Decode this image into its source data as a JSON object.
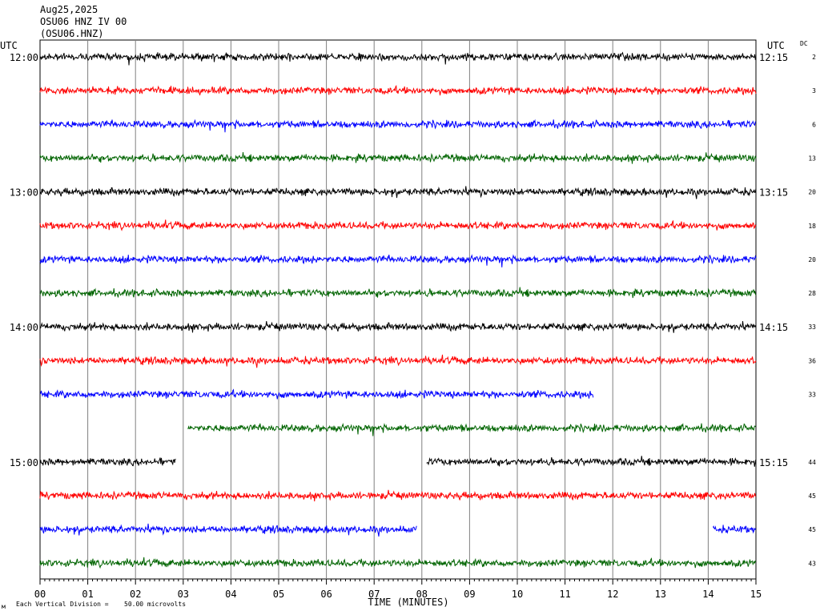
{
  "header": {
    "date": "Aug25,2025",
    "station": "OSU06 HNZ IV 00",
    "channel": "(OSU06.HNZ)",
    "utc_left": "UTC",
    "utc_right": "UTC",
    "dc_label": "DC"
  },
  "footer": {
    "scale_mark": "м",
    "scale_note": "Each Vertical Division =",
    "scale_value": "50.00 microvolts"
  },
  "chart_data": {
    "type": "line",
    "title": "OSU06 HNZ IV 00",
    "xlabel": "TIME (MINUTES)",
    "ylabel": "",
    "xlim": [
      0,
      15
    ],
    "x_ticks": [
      "00",
      "01",
      "02",
      "03",
      "04",
      "05",
      "06",
      "07",
      "08",
      "09",
      "10",
      "11",
      "12",
      "13",
      "14",
      "15"
    ],
    "grid": "vertical",
    "colors": [
      "#000000",
      "#ff0000",
      "#0000ff",
      "#006400"
    ],
    "rows": [
      {
        "left_label": "12:00",
        "right_label": "12:15",
        "dc": "2",
        "color": "#000000",
        "segments": [
          [
            0,
            15
          ]
        ]
      },
      {
        "left_label": "",
        "right_label": "",
        "dc": "3",
        "color": "#ff0000",
        "segments": [
          [
            0,
            15
          ]
        ]
      },
      {
        "left_label": "",
        "right_label": "",
        "dc": "6",
        "color": "#0000ff",
        "segments": [
          [
            0,
            15
          ]
        ]
      },
      {
        "left_label": "",
        "right_label": "",
        "dc": "13",
        "color": "#006400",
        "segments": [
          [
            0,
            15
          ]
        ]
      },
      {
        "left_label": "13:00",
        "right_label": "13:15",
        "dc": "20",
        "color": "#000000",
        "segments": [
          [
            0,
            15
          ]
        ]
      },
      {
        "left_label": "",
        "right_label": "",
        "dc": "18",
        "color": "#ff0000",
        "segments": [
          [
            0,
            15
          ]
        ]
      },
      {
        "left_label": "",
        "right_label": "",
        "dc": "20",
        "color": "#0000ff",
        "segments": [
          [
            0,
            15
          ]
        ]
      },
      {
        "left_label": "",
        "right_label": "",
        "dc": "28",
        "color": "#006400",
        "segments": [
          [
            0,
            15
          ]
        ]
      },
      {
        "left_label": "14:00",
        "right_label": "14:15",
        "dc": "33",
        "color": "#000000",
        "segments": [
          [
            0,
            15
          ]
        ]
      },
      {
        "left_label": "",
        "right_label": "",
        "dc": "36",
        "color": "#ff0000",
        "segments": [
          [
            0,
            15
          ]
        ]
      },
      {
        "left_label": "",
        "right_label": "",
        "dc": "33",
        "color": "#0000ff",
        "segments": [
          [
            0,
            11.6
          ]
        ]
      },
      {
        "left_label": "",
        "right_label": "",
        "dc": "",
        "color": "#006400",
        "segments": [
          [
            3.1,
            15
          ]
        ]
      },
      {
        "left_label": "15:00",
        "right_label": "15:15",
        "dc": "44",
        "color": "#000000",
        "segments": [
          [
            0,
            2.85
          ],
          [
            8.1,
            15
          ]
        ]
      },
      {
        "left_label": "",
        "right_label": "",
        "dc": "45",
        "color": "#ff0000",
        "segments": [
          [
            0,
            15
          ]
        ]
      },
      {
        "left_label": "",
        "right_label": "",
        "dc": "45",
        "color": "#0000ff",
        "segments": [
          [
            0,
            7.9
          ],
          [
            14.1,
            15
          ]
        ]
      },
      {
        "left_label": "",
        "right_label": "",
        "dc": "43",
        "color": "#006400",
        "segments": [
          [
            0,
            15
          ]
        ]
      }
    ]
  }
}
